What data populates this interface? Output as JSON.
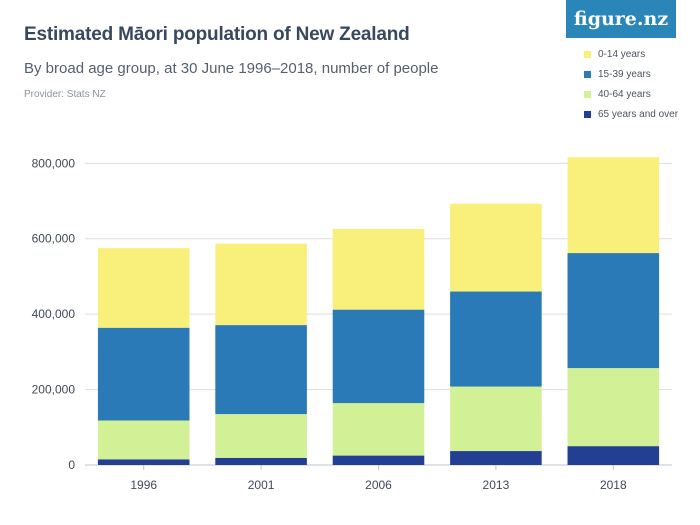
{
  "title": "Estimated Māori population of New Zealand",
  "subtitle": "By broad age group, at 30 June 1996–2018, number of people",
  "provider": "Provider: Stats NZ",
  "logo_text": "figure.nz",
  "colors": {
    "0-14 years": "#f8f07a",
    "15-39 years": "#2a7ab8",
    "40-64 years": "#d2f196",
    "65 years and over": "#233f94",
    "logo_bg": "#2a85b8",
    "grid": "#dddddd"
  },
  "chart_data": {
    "type": "bar",
    "stacked": true,
    "categories": [
      "1996",
      "2001",
      "2006",
      "2013",
      "2018"
    ],
    "series": [
      {
        "name": "65 years and over",
        "values": [
          15000,
          19000,
          25000,
          37000,
          50000
        ]
      },
      {
        "name": "40-64 years",
        "values": [
          103000,
          116000,
          139000,
          171000,
          207000
        ]
      },
      {
        "name": "15-39 years",
        "values": [
          246000,
          236000,
          248000,
          252000,
          305000
        ]
      },
      {
        "name": "0-14 years",
        "values": [
          211000,
          216000,
          214000,
          233000,
          254000
        ]
      }
    ],
    "legend": [
      "0-14 years",
      "15-39 years",
      "40-64 years",
      "65 years and over"
    ],
    "legend_position": "top-right",
    "yticks": [
      0,
      200000,
      400000,
      600000,
      800000
    ],
    "ytick_labels": [
      "0",
      "200,000",
      "400,000",
      "600,000",
      "800,000"
    ],
    "ylim": [
      0,
      830000
    ],
    "grid": true
  }
}
